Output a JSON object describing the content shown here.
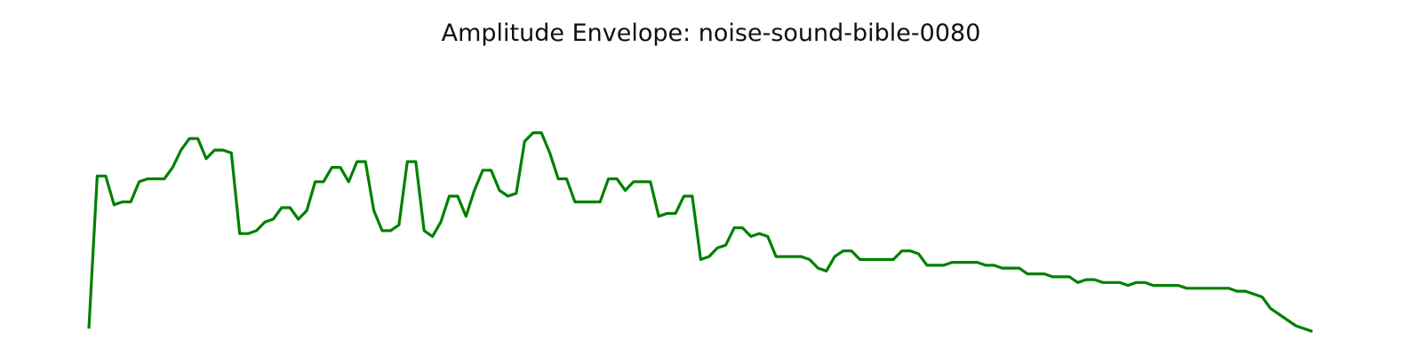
{
  "chart_data": {
    "type": "line",
    "title": "Amplitude Envelope: noise-sound-bible-0080",
    "xlabel": "",
    "ylabel": "",
    "axes_visible": false,
    "grid": false,
    "xlim": [
      0,
      149
    ],
    "ylim": [
      0.02,
      1.0
    ],
    "series": [
      {
        "color": "#008000",
        "values": [
          0.05,
          0.58,
          0.58,
          0.48,
          0.49,
          0.49,
          0.56,
          0.57,
          0.57,
          0.57,
          0.61,
          0.67,
          0.71,
          0.71,
          0.64,
          0.67,
          0.67,
          0.66,
          0.38,
          0.38,
          0.39,
          0.42,
          0.43,
          0.47,
          0.47,
          0.43,
          0.46,
          0.56,
          0.56,
          0.61,
          0.61,
          0.56,
          0.63,
          0.63,
          0.46,
          0.39,
          0.39,
          0.41,
          0.63,
          0.63,
          0.39,
          0.37,
          0.42,
          0.51,
          0.51,
          0.44,
          0.53,
          0.6,
          0.6,
          0.53,
          0.51,
          0.52,
          0.7,
          0.73,
          0.73,
          0.66,
          0.57,
          0.57,
          0.49,
          0.49,
          0.49,
          0.49,
          0.57,
          0.57,
          0.53,
          0.56,
          0.56,
          0.56,
          0.44,
          0.45,
          0.45,
          0.51,
          0.51,
          0.29,
          0.3,
          0.33,
          0.34,
          0.4,
          0.4,
          0.37,
          0.38,
          0.37,
          0.3,
          0.3,
          0.3,
          0.3,
          0.29,
          0.26,
          0.25,
          0.3,
          0.32,
          0.32,
          0.29,
          0.29,
          0.29,
          0.29,
          0.29,
          0.32,
          0.32,
          0.31,
          0.27,
          0.27,
          0.27,
          0.28,
          0.28,
          0.28,
          0.28,
          0.27,
          0.27,
          0.26,
          0.26,
          0.26,
          0.24,
          0.24,
          0.24,
          0.23,
          0.23,
          0.23,
          0.21,
          0.22,
          0.22,
          0.21,
          0.21,
          0.21,
          0.2,
          0.21,
          0.21,
          0.2,
          0.2,
          0.2,
          0.2,
          0.19,
          0.19,
          0.19,
          0.19,
          0.19,
          0.19,
          0.18,
          0.18,
          0.17,
          0.16,
          0.12,
          0.1,
          0.08,
          0.06,
          0.05,
          0.04
        ]
      }
    ]
  }
}
